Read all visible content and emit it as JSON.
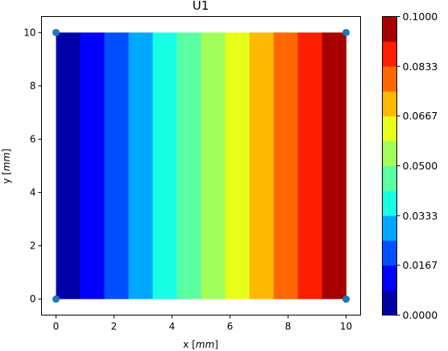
{
  "chart_data": {
    "type": "heatmap",
    "title": "U1",
    "xlabel": "x [mm]",
    "ylabel": "y [mm]",
    "xlim": [
      -0.5,
      10.5
    ],
    "ylim": [
      -0.6,
      10.6
    ],
    "xticks": [
      "0",
      "2",
      "4",
      "6",
      "8",
      "10"
    ],
    "yticks": [
      "0",
      "2",
      "4",
      "6",
      "8",
      "10"
    ],
    "grid": false,
    "colormap": "jet",
    "x_bands": [
      {
        "x0": 0.0,
        "x1": 0.833,
        "value": 0.0042,
        "color": "#0000a8"
      },
      {
        "x0": 0.833,
        "x1": 1.667,
        "value": 0.0125,
        "color": "#0000ff"
      },
      {
        "x0": 1.667,
        "x1": 2.5,
        "value": 0.0208,
        "color": "#0050ff"
      },
      {
        "x0": 2.5,
        "x1": 3.333,
        "value": 0.0292,
        "color": "#00a8ff"
      },
      {
        "x0": 3.333,
        "x1": 4.167,
        "value": 0.0375,
        "color": "#19ffe5"
      },
      {
        "x0": 4.167,
        "x1": 5.0,
        "value": 0.0458,
        "color": "#5affa2"
      },
      {
        "x0": 5.0,
        "x1": 5.833,
        "value": 0.0542,
        "color": "#a2ff5a"
      },
      {
        "x0": 5.833,
        "x1": 6.667,
        "value": 0.0625,
        "color": "#e5ff19"
      },
      {
        "x0": 6.667,
        "x1": 7.5,
        "value": 0.0708,
        "color": "#ffb900"
      },
      {
        "x0": 7.5,
        "x1": 8.333,
        "value": 0.0792,
        "color": "#ff6800"
      },
      {
        "x0": 8.333,
        "x1": 9.167,
        "value": 0.0875,
        "color": "#ff1e00"
      },
      {
        "x0": 9.167,
        "x1": 10.0,
        "value": 0.0958,
        "color": "#a80000"
      }
    ],
    "y_extent": [
      0,
      10
    ],
    "nodes": {
      "x": [
        0,
        10,
        0,
        10
      ],
      "y": [
        0,
        0,
        10,
        10
      ],
      "color": "#1f77b4"
    },
    "colorbar": {
      "min": 0.0,
      "max": 0.1,
      "levels": 12,
      "tick_labels": [
        "0.0000",
        "0.0167",
        "0.0333",
        "0.0500",
        "0.0667",
        "0.0833",
        "0.1000"
      ]
    }
  }
}
